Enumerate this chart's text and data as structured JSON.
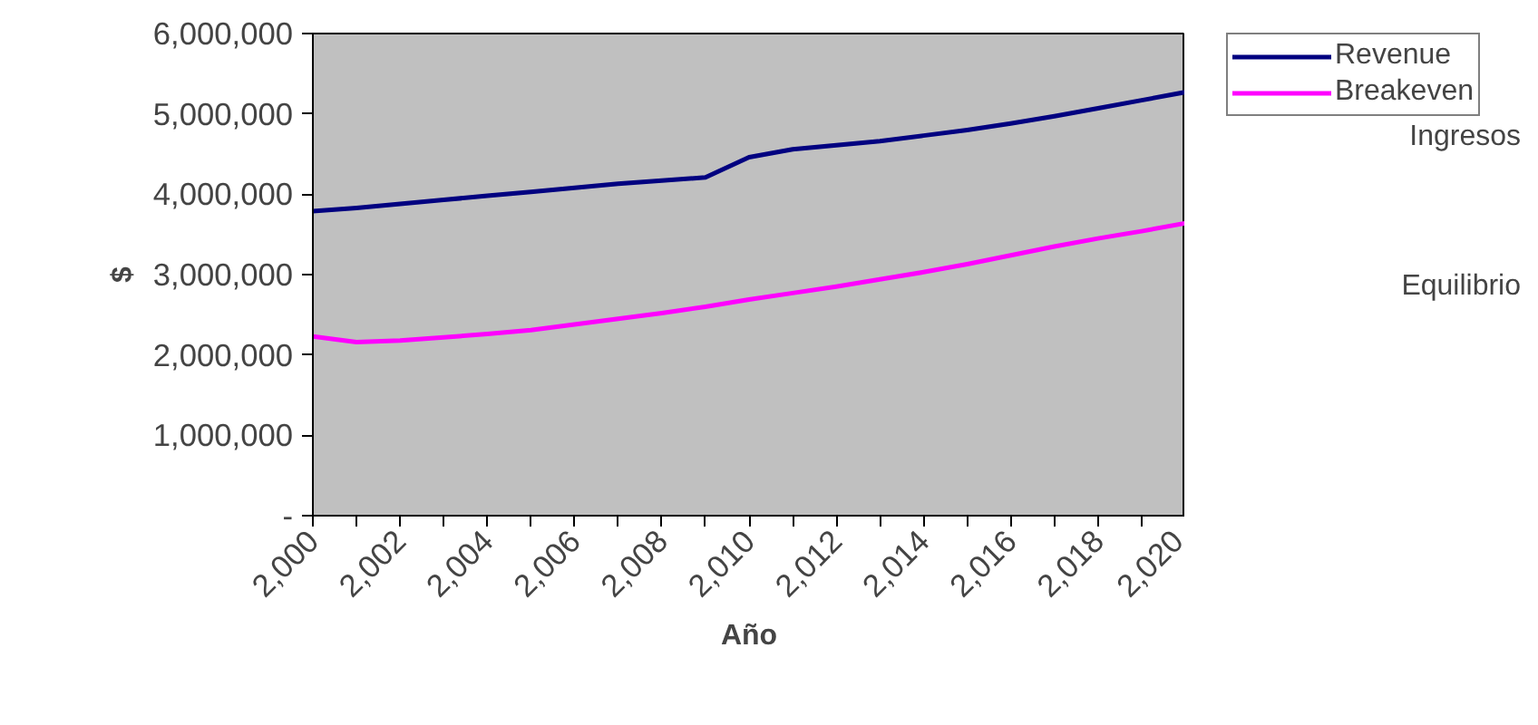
{
  "chart_data": {
    "type": "line",
    "xlabel": "Año",
    "ylabel": "$",
    "x": [
      2000,
      2001,
      2002,
      2003,
      2004,
      2005,
      2006,
      2007,
      2008,
      2009,
      2010,
      2011,
      2012,
      2013,
      2014,
      2015,
      2016,
      2017,
      2018,
      2019,
      2020
    ],
    "series": [
      {
        "name": "Revenue",
        "color": "#000080",
        "values": [
          3790000,
          3830000,
          3880000,
          3930000,
          3980000,
          4030000,
          4080000,
          4130000,
          4170000,
          4210000,
          4460000,
          4560000,
          4610000,
          4660000,
          4730000,
          4800000,
          4880000,
          4970000,
          5070000,
          5170000,
          5270000
        ]
      },
      {
        "name": "Breakeven",
        "color": "#ff00ff",
        "values": [
          2230000,
          2160000,
          2180000,
          2220000,
          2260000,
          2310000,
          2380000,
          2450000,
          2520000,
          2600000,
          2690000,
          2770000,
          2850000,
          2940000,
          3030000,
          3130000,
          3240000,
          3350000,
          3450000,
          3540000,
          3640000
        ]
      }
    ],
    "xlim": [
      2000,
      2020
    ],
    "xticks": [
      {
        "value": 2000,
        "label": "2,000"
      },
      {
        "value": 2001,
        "label": null
      },
      {
        "value": 2002,
        "label": "2,002"
      },
      {
        "value": 2003,
        "label": null
      },
      {
        "value": 2004,
        "label": "2,004"
      },
      {
        "value": 2005,
        "label": null
      },
      {
        "value": 2006,
        "label": "2,006"
      },
      {
        "value": 2007,
        "label": null
      },
      {
        "value": 2008,
        "label": "2,008"
      },
      {
        "value": 2009,
        "label": null
      },
      {
        "value": 2010,
        "label": "2,010"
      },
      {
        "value": 2011,
        "label": null
      },
      {
        "value": 2012,
        "label": "2,012"
      },
      {
        "value": 2013,
        "label": null
      },
      {
        "value": 2014,
        "label": "2,014"
      },
      {
        "value": 2015,
        "label": null
      },
      {
        "value": 2016,
        "label": "2,016"
      },
      {
        "value": 2017,
        "label": null
      },
      {
        "value": 2018,
        "label": "2,018"
      },
      {
        "value": 2019,
        "label": null
      },
      {
        "value": 2020,
        "label": "2,020"
      }
    ],
    "ylim": [
      0,
      6000000
    ],
    "yticks": [
      {
        "value": 0,
        "label": "-"
      },
      {
        "value": 1000000,
        "label": "1,000,000"
      },
      {
        "value": 2000000,
        "label": "2,000,000"
      },
      {
        "value": 3000000,
        "label": "3,000,000"
      },
      {
        "value": 4000000,
        "label": "4,000,000"
      },
      {
        "value": 5000000,
        "label": "5,000,000"
      },
      {
        "value": 6000000,
        "label": "6,000,000"
      }
    ],
    "annotations": [
      "Ingresos",
      "Equilibrio"
    ],
    "legend": "right",
    "grid": false,
    "marker": "none",
    "line_style": "solid"
  }
}
